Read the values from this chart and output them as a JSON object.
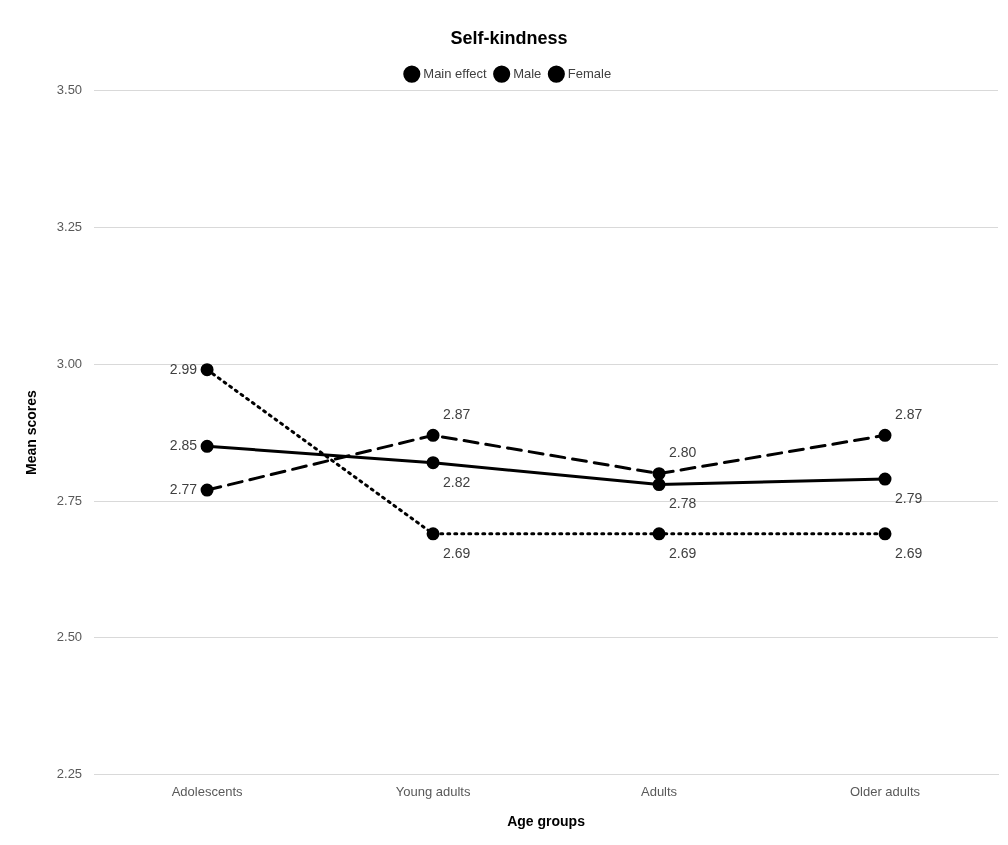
{
  "chart_data": {
    "type": "line",
    "title": "Self-kindness",
    "xlabel": "Age groups",
    "ylabel": "Mean scores",
    "categories": [
      "Adolescents",
      "Young adults",
      "Adults",
      "Older adults"
    ],
    "series": [
      {
        "name": "Main effect",
        "color": "#000000",
        "line_style": "solid",
        "values": [
          2.85,
          2.82,
          2.78,
          2.79
        ],
        "value_labels": [
          "2.85",
          "2.82",
          "2.78",
          "2.79"
        ]
      },
      {
        "name": "Male",
        "color": "#000000",
        "line_style": "dotted",
        "values": [
          2.99,
          2.69,
          2.69,
          2.69
        ],
        "value_labels": [
          "2.99",
          "2.69",
          "2.69",
          "2.69"
        ]
      },
      {
        "name": "Female",
        "color": "#000000",
        "line_style": "dashed",
        "values": [
          2.77,
          2.87,
          2.8,
          2.87
        ],
        "value_labels": [
          "2.77",
          "2.87",
          "2.80",
          "2.87"
        ]
      }
    ],
    "ylim": [
      2.25,
      3.5
    ],
    "yticks": [
      {
        "value": 2.25,
        "label": "2.25"
      },
      {
        "value": 2.5,
        "label": "2.50"
      },
      {
        "value": 2.75,
        "label": "2.75"
      },
      {
        "value": 3,
        "label": "3.00"
      },
      {
        "value": 3.25,
        "label": "3.25"
      },
      {
        "value": 3.5,
        "label": "3.50"
      }
    ],
    "grid": "y",
    "legend": "top",
    "marker": "circle"
  }
}
